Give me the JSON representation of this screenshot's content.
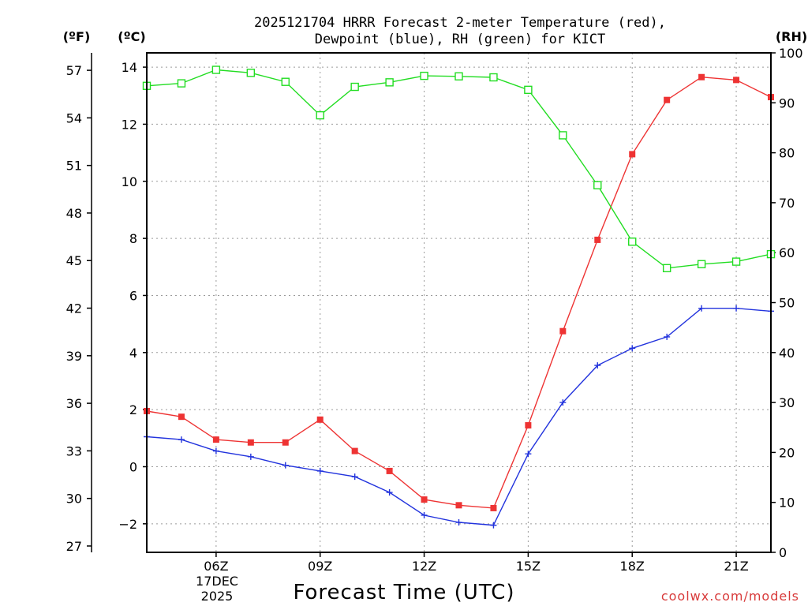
{
  "title": {
    "line1": "2025121704 HRRR Forecast 2-meter Temperature (red),",
    "line2": "Dewpoint (blue), RH (green) for KICT"
  },
  "units": {
    "left_f": "(ºF)",
    "left_c": "(ºC)",
    "right_rh": "(RH)"
  },
  "xlabel": "Forecast Time (UTC)",
  "credit": "coolwx.com/models",
  "date_label": {
    "day": "17DEC",
    "year": "2025"
  },
  "colors": {
    "temperature": "#ee3333",
    "dewpoint": "#2233dd",
    "rh": "#22dd22",
    "grid": "#9a9a9a",
    "credit": "#d83a3a"
  },
  "chart_data": {
    "type": "line",
    "x_hours": [
      4,
      5,
      6,
      7,
      8,
      9,
      10,
      11,
      12,
      13,
      14,
      15,
      16,
      17,
      18,
      19,
      20,
      21,
      22
    ],
    "xlim": [
      4,
      22
    ],
    "x_ticks": [
      {
        "hour": 6,
        "label": "06Z"
      },
      {
        "hour": 9,
        "label": "09Z"
      },
      {
        "hour": 12,
        "label": "12Z"
      },
      {
        "hour": 15,
        "label": "15Z"
      },
      {
        "hour": 18,
        "label": "18Z"
      },
      {
        "hour": 21,
        "label": "21Z"
      }
    ],
    "celsius_axis": {
      "range": [
        -3,
        14.5
      ],
      "ticks": [
        -2,
        0,
        2,
        4,
        6,
        8,
        10,
        12,
        14
      ],
      "tick_labels": [
        "−2",
        "0",
        "2",
        "4",
        "6",
        "8",
        "10",
        "12",
        "14"
      ]
    },
    "fahrenheit_axis": {
      "ticks": [
        27,
        30,
        33,
        36,
        39,
        42,
        45,
        48,
        51,
        54,
        57
      ],
      "tick_labels": [
        "27",
        "30",
        "33",
        "36",
        "39",
        "42",
        "45",
        "48",
        "51",
        "54",
        "57"
      ]
    },
    "rh_axis": {
      "range": [
        0,
        100
      ],
      "ticks": [
        0,
        10,
        20,
        30,
        40,
        50,
        60,
        70,
        80,
        90,
        100
      ],
      "tick_labels": [
        "0",
        "10",
        "20",
        "30",
        "40",
        "50",
        "60",
        "70",
        "80",
        "90",
        "100"
      ]
    },
    "series": [
      {
        "name": "Temperature",
        "unit": "C",
        "marker": "filled-square",
        "color": "#ee3333",
        "values": [
          1.95,
          1.75,
          0.95,
          0.85,
          0.85,
          1.65,
          0.55,
          -0.15,
          -1.15,
          -1.35,
          -1.45,
          1.45,
          4.75,
          7.95,
          10.95,
          12.85,
          13.65,
          13.55,
          12.95
        ]
      },
      {
        "name": "Dewpoint",
        "unit": "C",
        "marker": "plus",
        "color": "#2233dd",
        "values": [
          1.05,
          0.95,
          0.55,
          0.35,
          0.05,
          -0.15,
          -0.35,
          -0.9,
          -1.7,
          -1.95,
          -2.05,
          0.45,
          2.25,
          3.55,
          4.15,
          4.55,
          5.55,
          5.55,
          5.45
        ]
      },
      {
        "name": "RH",
        "unit": "%",
        "marker": "open-square",
        "color": "#22dd22",
        "values": [
          93.4,
          93.9,
          96.6,
          96.0,
          94.2,
          87.5,
          93.2,
          94.1,
          95.4,
          95.3,
          95.1,
          92.6,
          83.5,
          73.5,
          62.2,
          56.9,
          57.7,
          58.2,
          59.7
        ]
      }
    ]
  }
}
